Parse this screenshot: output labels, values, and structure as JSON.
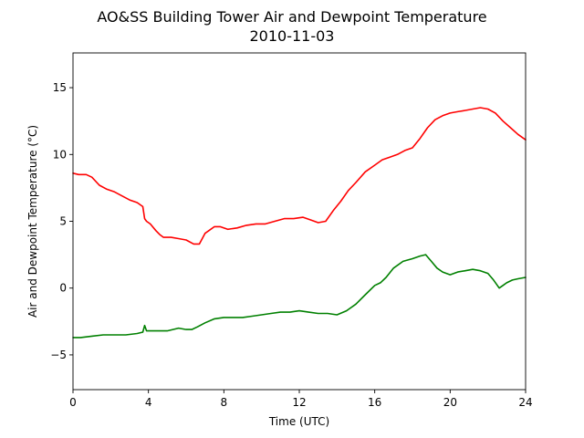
{
  "chart_data": {
    "type": "line",
    "title": "AO&SS Building Tower Air and Dewpoint Temperature",
    "subtitle": "2010-11-03",
    "xlabel": "Time (UTC)",
    "ylabel": "Air and Dewpoint Temperature (°C)",
    "xlim": [
      0,
      24
    ],
    "ylim": [
      -7.6,
      17.6
    ],
    "xticks": [
      0,
      4,
      8,
      12,
      16,
      20,
      24
    ],
    "yticks": [
      -5,
      0,
      5,
      10,
      15
    ],
    "grid": false,
    "series": [
      {
        "color": "#ff0000",
        "x": [
          0,
          0.3,
          0.7,
          1.0,
          1.4,
          1.8,
          2.2,
          2.6,
          3.0,
          3.4,
          3.7,
          3.8,
          3.9,
          4.1,
          4.4,
          4.6,
          4.8,
          5.2,
          5.6,
          6.0,
          6.4,
          6.7,
          7.0,
          7.2,
          7.5,
          7.8,
          8.2,
          8.7,
          9.2,
          9.7,
          10.2,
          10.7,
          11.2,
          11.7,
          12.2,
          12.6,
          13.0,
          13.4,
          13.8,
          14.2,
          14.6,
          15.0,
          15.5,
          16.0,
          16.4,
          16.8,
          17.2,
          17.6,
          18.0,
          18.4,
          18.8,
          19.2,
          19.6,
          20.0,
          20.4,
          20.8,
          21.2,
          21.6,
          22.0,
          22.4,
          22.8,
          23.2,
          23.6,
          24.0
        ],
        "values": [
          8.6,
          8.5,
          8.5,
          8.3,
          7.7,
          7.4,
          7.2,
          6.9,
          6.6,
          6.4,
          6.1,
          5.2,
          5.0,
          4.8,
          4.3,
          4.0,
          3.8,
          3.8,
          3.7,
          3.6,
          3.3,
          3.3,
          4.1,
          4.3,
          4.6,
          4.6,
          4.4,
          4.5,
          4.7,
          4.8,
          4.8,
          5.0,
          5.2,
          5.2,
          5.3,
          5.1,
          4.9,
          5.0,
          5.8,
          6.5,
          7.3,
          7.9,
          8.7,
          9.2,
          9.6,
          9.8,
          10.0,
          10.3,
          10.5,
          11.2,
          12.0,
          12.6,
          12.9,
          13.1,
          13.2,
          13.3,
          13.4,
          13.5,
          13.4,
          13.1,
          12.5,
          12.0,
          11.5,
          11.1
        ]
      },
      {
        "color": "#008000",
        "x": [
          0,
          0.4,
          1.0,
          1.6,
          2.2,
          2.8,
          3.4,
          3.7,
          3.8,
          3.9,
          4.2,
          4.6,
          5.0,
          5.6,
          6.0,
          6.3,
          6.6,
          7.0,
          7.5,
          8.0,
          8.5,
          9.0,
          9.5,
          10.0,
          10.5,
          11.0,
          11.5,
          12.0,
          12.5,
          13.0,
          13.5,
          14.0,
          14.5,
          15.0,
          15.5,
          16.0,
          16.3,
          16.6,
          17.0,
          17.5,
          18.0,
          18.4,
          18.7,
          19.0,
          19.3,
          19.6,
          20.0,
          20.4,
          20.8,
          21.2,
          21.6,
          22.0,
          22.3,
          22.6,
          22.8,
          23.0,
          23.3,
          23.6,
          24.0
        ],
        "values": [
          -3.7,
          -3.7,
          -3.6,
          -3.5,
          -3.5,
          -3.5,
          -3.4,
          -3.3,
          -2.8,
          -3.2,
          -3.2,
          -3.2,
          -3.2,
          -3.0,
          -3.1,
          -3.1,
          -2.9,
          -2.6,
          -2.3,
          -2.2,
          -2.2,
          -2.2,
          -2.1,
          -2.0,
          -1.9,
          -1.8,
          -1.8,
          -1.7,
          -1.8,
          -1.9,
          -1.9,
          -2.0,
          -1.7,
          -1.2,
          -0.5,
          0.2,
          0.4,
          0.8,
          1.5,
          2.0,
          2.2,
          2.4,
          2.5,
          2.0,
          1.5,
          1.2,
          1.0,
          1.2,
          1.3,
          1.4,
          1.3,
          1.1,
          0.6,
          0.0,
          0.2,
          0.4,
          0.6,
          0.7,
          0.8
        ]
      }
    ]
  }
}
